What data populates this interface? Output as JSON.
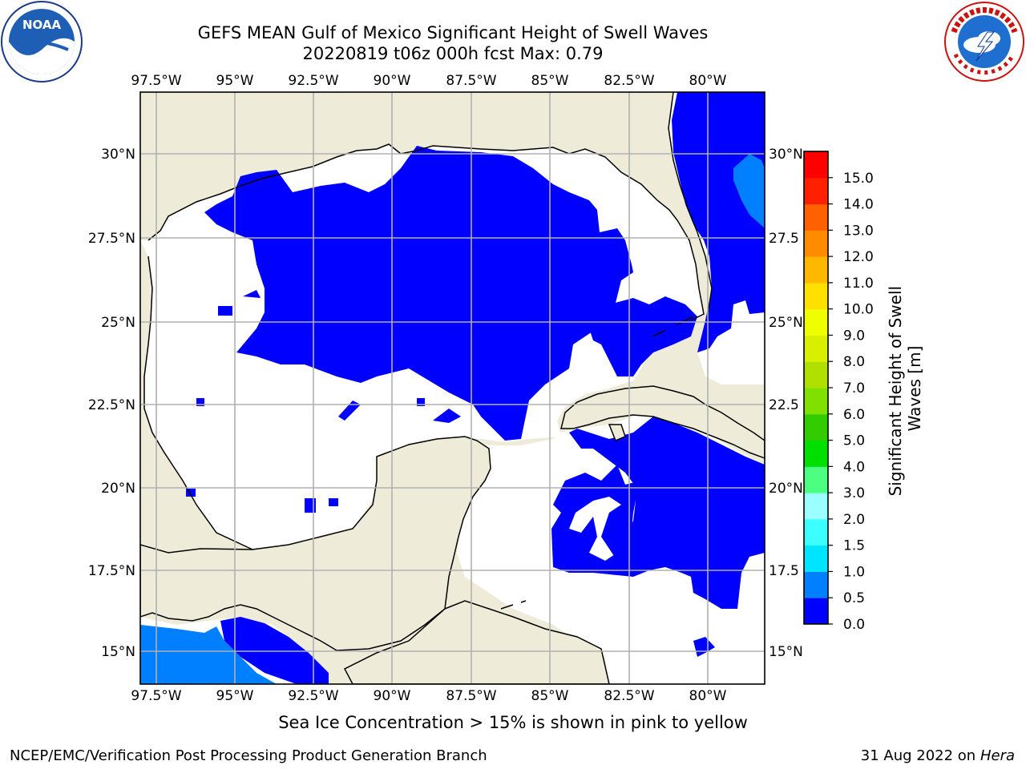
{
  "header": {
    "title_line1": "GEFS MEAN Gulf of Mexico Significant Height of Swell Waves",
    "title_line2": "20220819 t06z 000h fcst   Max: 0.79"
  },
  "logos": {
    "left": "noaa-logo",
    "right": "nws-logo"
  },
  "map": {
    "lon_labels": [
      "97.5°W",
      "95°W",
      "92.5°W",
      "90°W",
      "87.5°W",
      "85°W",
      "82.5°W",
      "80°W"
    ],
    "lat_labels": [
      "30°N",
      "27.5°N",
      "25°N",
      "22.5°N",
      "20°N",
      "17.5°N",
      "15°N"
    ],
    "lat_labels_right": [
      "30°N",
      "27.5",
      "25°N",
      "22.5",
      "20°N",
      "17.5",
      "15°N"
    ],
    "colors": {
      "land": "#eeecd9",
      "water_zero": "#ffffff",
      "swell_low": "#0000ff",
      "swell_mid": "#0080ff",
      "grid": "#b0b0b0",
      "coast": "#000000"
    }
  },
  "colorbar": {
    "label": "Significant Height of Swell Waves [m]",
    "label_line1": "Significant Height of Swell",
    "label_line2": "Waves [m]",
    "ticks": [
      "15.0",
      "14.0",
      "13.0",
      "12.0",
      "11.0",
      "10.0",
      "9.0",
      "8.0",
      "7.0",
      "6.0",
      "5.0",
      "4.0",
      "3.0",
      "2.0",
      "1.5",
      "1.0",
      "0.5",
      "0.0"
    ],
    "colors": [
      "#0000ff",
      "#0080ff",
      "#00e5ff",
      "#3cffff",
      "#9bffff",
      "#4dff80",
      "#00e000",
      "#33cc00",
      "#80e000",
      "#b0e000",
      "#d8f000",
      "#f0ff00",
      "#ffe000",
      "#ffb800",
      "#ff8c00",
      "#ff6000",
      "#ff2000",
      "#ff0000"
    ]
  },
  "footer": {
    "note": "Sea Ice Concentration > 15% is shown in pink to yellow",
    "credit_left": "NCEP/EMC/Verification Post Processing Product Generation Branch",
    "credit_right_date": "31 Aug 2022 on",
    "credit_right_host": "Hera"
  }
}
